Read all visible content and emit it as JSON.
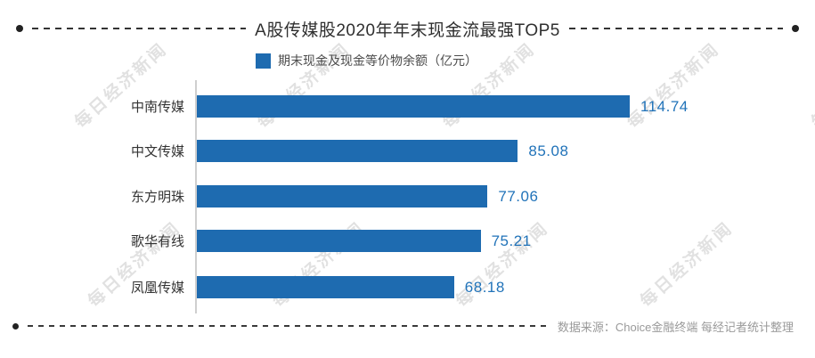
{
  "title": {
    "text": "A股传媒股2020年年末现金流最强TOP5"
  },
  "legend": {
    "label": "期末现金及现金等价物余额（亿元）",
    "swatch_color": "#1e6bb0"
  },
  "footer": {
    "source_text": "数据来源：Choice金融终端 每经记者统计整理"
  },
  "watermark": {
    "text": "每日经济新闻"
  },
  "colors": {
    "bar": "#1e6bb0",
    "value_label": "#2173b9",
    "title_text": "#2f2f2f",
    "category_label": "#333333",
    "legend_text": "#4c4c4c",
    "axis_line": "#cfcfcf",
    "footer_text": "#9a9a9a",
    "dash_line": "#333333",
    "watermark": "#b0b0b0"
  },
  "chart_data": {
    "type": "bar",
    "orientation": "horizontal",
    "title": "A股传媒股2020年年末现金流最强TOP5",
    "legend_entries": [
      "期末现金及现金等价物余额（亿元）"
    ],
    "categories": [
      "中南传媒",
      "中文传媒",
      "东方明珠",
      "歌华有线",
      "凤凰传媒"
    ],
    "values": [
      114.74,
      85.08,
      77.06,
      75.21,
      68.18
    ],
    "unit": "亿元",
    "xlabel": "",
    "ylabel": "",
    "xlim": [
      0,
      120
    ],
    "grid": false,
    "value_labels_shown": true,
    "legend_position": "top-left-of-plot",
    "source": "数据来源：Choice金融终端 每经记者统计整理"
  }
}
